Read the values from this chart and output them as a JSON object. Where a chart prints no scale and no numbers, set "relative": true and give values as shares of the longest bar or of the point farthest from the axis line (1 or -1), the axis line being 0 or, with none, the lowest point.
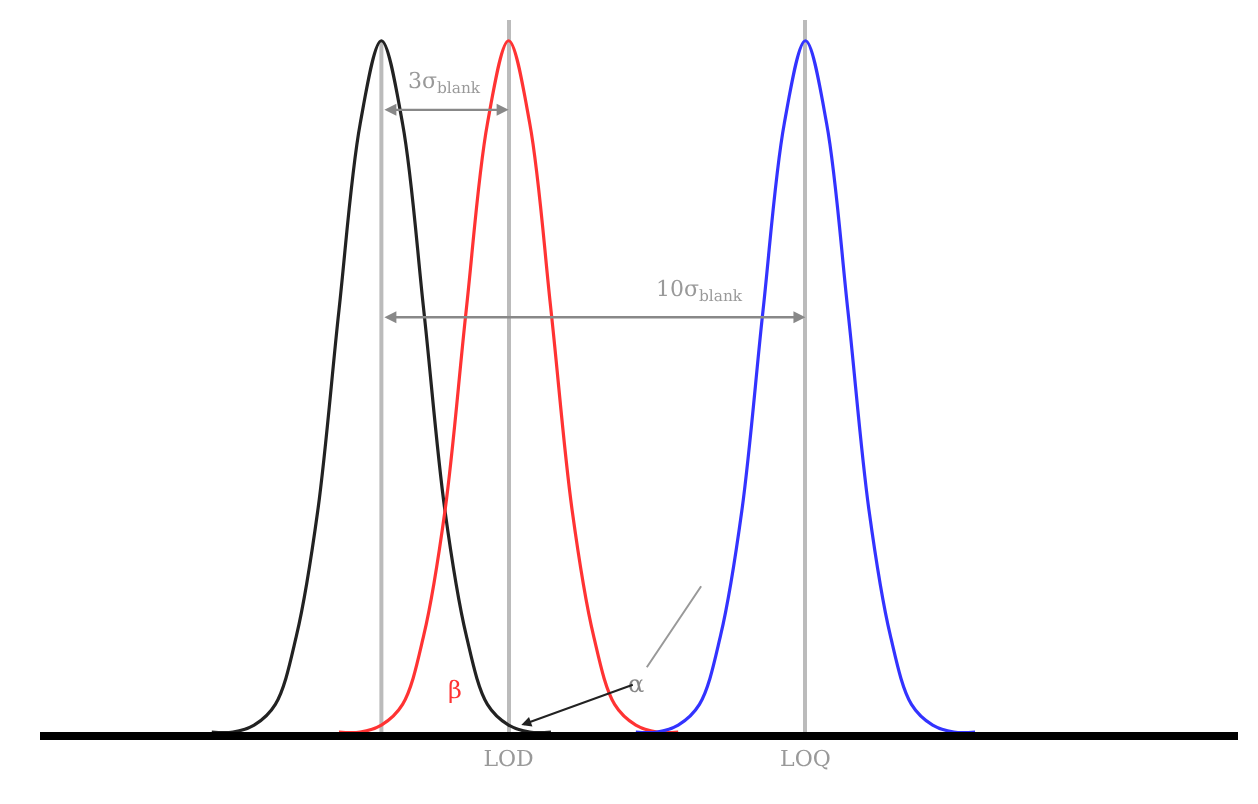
{
  "chart_data": {
    "type": "line",
    "relative": true,
    "grid": "x",
    "marker": "none",
    "line_style": "solid",
    "categories": [
      null,
      null,
      null,
      null,
      null,
      null,
      null,
      null,
      null,
      null,
      null,
      null,
      null,
      null,
      null,
      null,
      null,
      null,
      null,
      null,
      null,
      null,
      "LOD",
      null,
      null,
      null,
      null,
      null,
      null,
      null,
      null,
      null,
      null,
      null,
      null,
      null,
      "LOQ",
      null,
      null,
      null,
      null,
      null,
      null,
      null,
      null,
      null,
      null,
      null,
      null,
      null,
      null,
      null,
      null,
      null,
      null,
      null,
      null
    ],
    "series": [
      {
        "color": "#222222",
        "values": [
          null,
          null,
          null,
          null,
          null,
          null,
          null,
          null,
          0,
          0,
          0.01,
          0.04,
          0.14,
          0.32,
          0.61,
          0.88,
          1,
          0.88,
          0.61,
          0.32,
          0.14,
          0.04,
          0.01,
          0,
          0,
          null,
          null,
          null,
          null,
          null,
          null,
          null,
          null,
          null,
          null,
          null,
          null,
          null,
          null,
          null,
          null,
          null,
          null,
          null,
          null,
          null,
          null,
          null,
          null,
          null,
          null,
          null,
          null,
          null,
          null,
          null,
          null
        ]
      },
      {
        "color": "#ff3333",
        "values": [
          null,
          null,
          null,
          null,
          null,
          null,
          null,
          null,
          null,
          null,
          null,
          null,
          null,
          null,
          0,
          0,
          0.01,
          0.04,
          0.14,
          0.32,
          0.61,
          0.88,
          1,
          0.88,
          0.61,
          0.32,
          0.14,
          0.04,
          0.01,
          0,
          0,
          null,
          null,
          null,
          null,
          null,
          null,
          null,
          null,
          null,
          null,
          null,
          null,
          null,
          null,
          null,
          null,
          null,
          null,
          null,
          null,
          null,
          null,
          null,
          null,
          null,
          null
        ]
      },
      {
        "color": "#3333ff",
        "values": [
          null,
          null,
          null,
          null,
          null,
          null,
          null,
          null,
          null,
          null,
          null,
          null,
          null,
          null,
          null,
          null,
          null,
          null,
          null,
          null,
          null,
          null,
          null,
          null,
          null,
          null,
          null,
          null,
          0,
          0,
          0.01,
          0.04,
          0.14,
          0.32,
          0.61,
          0.88,
          1,
          0.88,
          0.61,
          0.32,
          0.14,
          0.04,
          0.01,
          0,
          0,
          null,
          null,
          null,
          null,
          null,
          null,
          null,
          null,
          null,
          null,
          null,
          null
        ]
      }
    ],
    "annotations": [
      "3σ$_{blank}$",
      "10σ$_{blank}$",
      "β",
      "α"
    ]
  }
}
